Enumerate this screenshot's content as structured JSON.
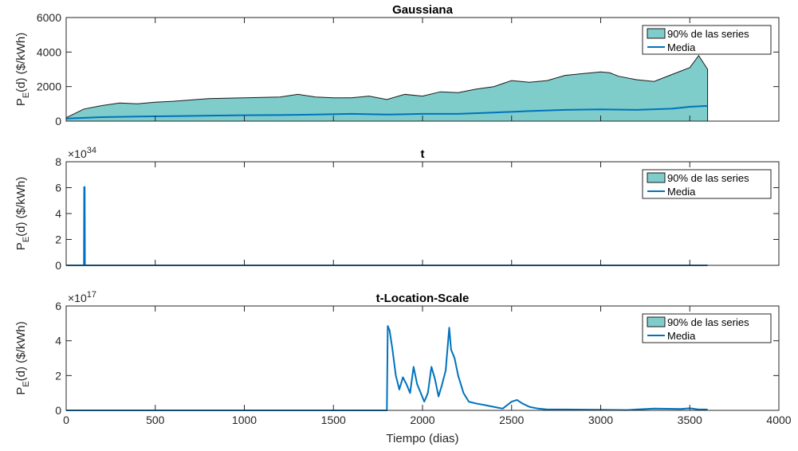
{
  "colors": {
    "band": "#7fcdcb",
    "mean": "#0072bd",
    "edge": "#1a1a1a",
    "axis": "#262626"
  },
  "chart_data": [
    {
      "type": "area",
      "title": "Gaussiana",
      "ylabel_main": "P",
      "ylabel_sub": "E",
      "ylabel_rest": "(d) ($/kWh)",
      "exponent_base": "",
      "exponent_power": "",
      "xlim": [
        0,
        4000
      ],
      "ylim": [
        0,
        6000
      ],
      "yticks": [
        0,
        2000,
        4000,
        6000
      ],
      "ytick_labels": [
        "0",
        "2000",
        "4000",
        "6000"
      ],
      "legend": [
        "90% de las series",
        "Media"
      ],
      "legend_position": "top-right",
      "series": [
        {
          "name": "90% de las series",
          "kind": "band",
          "x": [
            0,
            100,
            200,
            300,
            400,
            500,
            600,
            800,
            1000,
            1200,
            1300,
            1400,
            1500,
            1600,
            1700,
            1800,
            1900,
            2000,
            2100,
            2200,
            2300,
            2400,
            2500,
            2600,
            2700,
            2800,
            2900,
            3000,
            3050,
            3100,
            3200,
            3300,
            3400,
            3500,
            3550,
            3600
          ],
          "lower": [
            0,
            0,
            0,
            0,
            0,
            0,
            0,
            0,
            0,
            0,
            0,
            0,
            0,
            0,
            0,
            0,
            0,
            0,
            0,
            0,
            0,
            0,
            0,
            0,
            0,
            0,
            0,
            0,
            0,
            0,
            0,
            0,
            0,
            0,
            0,
            0
          ],
          "upper": [
            200,
            700,
            900,
            1050,
            1000,
            1100,
            1150,
            1300,
            1350,
            1400,
            1550,
            1400,
            1350,
            1350,
            1450,
            1250,
            1550,
            1450,
            1700,
            1650,
            1850,
            2000,
            2350,
            2250,
            2350,
            2650,
            2750,
            2850,
            2800,
            2600,
            2400,
            2300,
            2700,
            3100,
            3800,
            3000
          ]
        },
        {
          "name": "Media",
          "kind": "line",
          "x": [
            0,
            200,
            400,
            600,
            800,
            1000,
            1200,
            1400,
            1600,
            1800,
            2000,
            2200,
            2400,
            2600,
            2800,
            3000,
            3200,
            3400,
            3500,
            3600
          ],
          "y": [
            150,
            230,
            270,
            290,
            320,
            340,
            350,
            380,
            420,
            380,
            420,
            420,
            500,
            580,
            650,
            680,
            650,
            720,
            830,
            880
          ]
        }
      ]
    },
    {
      "type": "area",
      "title": "t",
      "ylabel_main": "P",
      "ylabel_sub": "E",
      "ylabel_rest": "(d) ($/kWh)",
      "exponent_base": "×10",
      "exponent_power": "34",
      "xlim": [
        0,
        4000
      ],
      "ylim": [
        0,
        8
      ],
      "yticks": [
        0,
        2,
        4,
        6,
        8
      ],
      "ytick_labels": [
        "0",
        "2",
        "4",
        "6",
        "8"
      ],
      "legend": [
        "90% de las series",
        "Media"
      ],
      "legend_position": "top-right",
      "series": [
        {
          "name": "90% de las series",
          "kind": "band",
          "x": [
            0,
            3600
          ],
          "lower": [
            0,
            0
          ],
          "upper": [
            0,
            0
          ]
        },
        {
          "name": "Media",
          "kind": "line",
          "x": [
            0,
            100,
            101,
            104,
            105,
            3600
          ],
          "y": [
            0,
            0,
            6.05,
            6.05,
            0,
            0
          ]
        }
      ]
    },
    {
      "type": "area",
      "title": "t-Location-Scale",
      "ylabel_main": "P",
      "ylabel_sub": "E",
      "ylabel_rest": "(d) ($/kWh)",
      "exponent_base": "×10",
      "exponent_power": "17",
      "xlabel": "Tiempo (dias)",
      "xlim": [
        0,
        4000
      ],
      "ylim": [
        0,
        6
      ],
      "xticks": [
        0,
        500,
        1000,
        1500,
        2000,
        2500,
        3000,
        3500,
        4000
      ],
      "xtick_labels": [
        "0",
        "500",
        "1000",
        "1500",
        "2000",
        "2500",
        "3000",
        "3500",
        "4000"
      ],
      "yticks": [
        0,
        2,
        4,
        6
      ],
      "ytick_labels": [
        "0",
        "2",
        "4",
        "6"
      ],
      "legend": [
        "90% de las series",
        "Media"
      ],
      "legend_position": "top-right",
      "series": [
        {
          "name": "90% de las series",
          "kind": "band",
          "x": [
            0,
            3600
          ],
          "lower": [
            0,
            0
          ],
          "upper": [
            0,
            0
          ]
        },
        {
          "name": "Media",
          "kind": "line",
          "x": [
            0,
            1800,
            1805,
            1815,
            1830,
            1850,
            1870,
            1890,
            1910,
            1930,
            1950,
            1970,
            1990,
            2010,
            2030,
            2050,
            2070,
            2090,
            2110,
            2130,
            2150,
            2160,
            2180,
            2200,
            2230,
            2260,
            2300,
            2350,
            2400,
            2450,
            2500,
            2530,
            2560,
            2600,
            2650,
            2700,
            2800,
            3000,
            3150,
            3200,
            3300,
            3450,
            3500,
            3550,
            3600
          ],
          "y": [
            0,
            0,
            4.85,
            4.6,
            3.6,
            2.0,
            1.2,
            1.9,
            1.5,
            1.0,
            2.5,
            1.5,
            1.0,
            0.5,
            1.0,
            2.5,
            1.8,
            0.8,
            1.5,
            2.3,
            4.75,
            3.5,
            3.0,
            2.0,
            1.0,
            0.5,
            0.4,
            0.3,
            0.2,
            0.1,
            0.5,
            0.6,
            0.4,
            0.2,
            0.1,
            0.05,
            0.05,
            0.03,
            0.02,
            0.05,
            0.1,
            0.08,
            0.12,
            0.05,
            0.05
          ]
        }
      ]
    }
  ]
}
